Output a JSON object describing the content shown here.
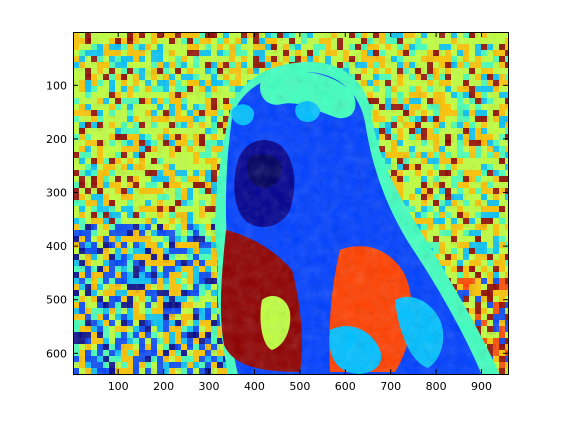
{
  "chart_data": {
    "type": "heatmap",
    "title": "",
    "xlabel": "",
    "ylabel": "",
    "xlim": [
      0.5,
      960.5
    ],
    "ylim": [
      0.5,
      640.5
    ],
    "y_reversed": true,
    "x_ticks": [
      100,
      200,
      300,
      400,
      500,
      600,
      700,
      800,
      900
    ],
    "x_tick_labels": [
      "100",
      "200",
      "300",
      "400",
      "500",
      "600",
      "700",
      "800",
      "900"
    ],
    "y_ticks": [
      100,
      200,
      300,
      400,
      500,
      600
    ],
    "y_tick_labels": [
      "100",
      "200",
      "300",
      "400",
      "500",
      "600"
    ],
    "colormap": "jet",
    "palette": [
      "#00008f",
      "#0040ff",
      "#00bfff",
      "#40ffbf",
      "#bfff40",
      "#ffbf00",
      "#ff4000",
      "#8f0000"
    ],
    "grid": false,
    "subject": "dog face, posterized jet-colormap image"
  }
}
